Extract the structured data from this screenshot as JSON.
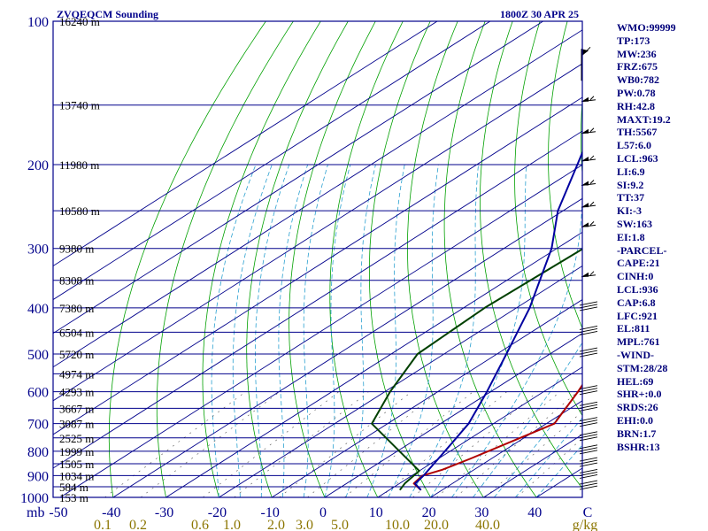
{
  "chart_data": {
    "type": "skew-t-log-p",
    "title": "ZVQEQCM Sounding",
    "valid_time": "1800Z 30 APR 25",
    "pressure_axis": {
      "unit": "mb",
      "ylim": [
        1000,
        100
      ],
      "tick_labels": [
        "100",
        "200",
        "300",
        "400",
        "500",
        "600",
        "700",
        "800",
        "900",
        "1000"
      ]
    },
    "temperature_axis": {
      "unit": "C",
      "xlim": [
        -50,
        50
      ],
      "tick_labels": [
        "-50",
        "-40",
        "-30",
        "-20",
        "-10",
        "0",
        "10",
        "20",
        "30",
        "40",
        "C"
      ]
    },
    "mixing_ratio_axis": {
      "unit": "g/kg",
      "tick_labels": [
        "0.1",
        "0.2",
        "0.6",
        "1.0",
        "2.0",
        "3.0",
        "5.0",
        "10.0",
        "20.0",
        "40.0",
        "g/kg"
      ]
    },
    "height_labels": [
      {
        "p": 100,
        "label": "16240 m"
      },
      {
        "p": 150,
        "label": "13740 m"
      },
      {
        "p": 200,
        "label": "11980 m"
      },
      {
        "p": 250,
        "label": "10580 m"
      },
      {
        "p": 300,
        "label": "9380 m"
      },
      {
        "p": 350,
        "label": "8308 m"
      },
      {
        "p": 400,
        "label": "7380 m"
      },
      {
        "p": 450,
        "label": "6504 m"
      },
      {
        "p": 500,
        "label": "5720 m"
      },
      {
        "p": 550,
        "label": "4974 m"
      },
      {
        "p": 600,
        "label": "4293 m"
      },
      {
        "p": 650,
        "label": "3667 m"
      },
      {
        "p": 700,
        "label": "3087 m"
      },
      {
        "p": 750,
        "label": "2525 m"
      },
      {
        "p": 800,
        "label": "1999 m"
      },
      {
        "p": 850,
        "label": "1505 m"
      },
      {
        "p": 900,
        "label": "1034 m"
      },
      {
        "p": 950,
        "label": "584 m"
      },
      {
        "p": 1000,
        "label": "153 m"
      }
    ],
    "series": [
      {
        "name": "temperature",
        "color": "#b00000",
        "points": [
          [
            965,
            16
          ],
          [
            935,
            12.7
          ],
          [
            900,
            12
          ],
          [
            875,
            14
          ],
          [
            830,
            16
          ],
          [
            700,
            21.5
          ],
          [
            600,
            16.5
          ],
          [
            500,
            10
          ],
          [
            400,
            4
          ],
          [
            300,
            -6.5
          ],
          [
            250,
            -11
          ],
          [
            200,
            -8
          ],
          [
            150,
            -9
          ],
          [
            130,
            -3
          ],
          [
            100,
            9
          ]
        ]
      },
      {
        "name": "dewpoint",
        "color": "#004000",
        "points": [
          [
            965,
            12
          ],
          [
            935,
            11
          ],
          [
            880,
            10
          ],
          [
            700,
            -13
          ],
          [
            600,
            -19
          ],
          [
            500,
            -25
          ],
          [
            400,
            -26
          ],
          [
            300,
            -25
          ],
          [
            250,
            -32
          ],
          [
            200,
            -36
          ],
          [
            170,
            -29
          ],
          [
            150,
            -30
          ],
          [
            120,
            -23
          ],
          [
            100,
            -10
          ]
        ]
      },
      {
        "name": "parcel",
        "color": "#0000a0",
        "points": [
          [
            965,
            16
          ],
          [
            936,
            13
          ],
          [
            900,
            12.2
          ],
          [
            800,
            9
          ],
          [
            700,
            5.3
          ],
          [
            600,
            -0.7
          ],
          [
            500,
            -8.2
          ],
          [
            400,
            -17.5
          ],
          [
            300,
            -31
          ],
          [
            250,
            -41
          ],
          [
            200,
            -51
          ],
          [
            150,
            -64
          ],
          [
            110,
            -75
          ]
        ]
      }
    ],
    "wind_barbs": [
      {
        "p": 130,
        "kind": "flag"
      },
      {
        "p": 150,
        "kind": "barb"
      },
      {
        "p": 175,
        "kind": "barb"
      },
      {
        "p": 200,
        "kind": "barb"
      },
      {
        "p": 225,
        "kind": "barb"
      },
      {
        "p": 250,
        "kind": "barb"
      },
      {
        "p": 275,
        "kind": "barb"
      },
      {
        "p": 350,
        "kind": "barb"
      },
      {
        "p": 400,
        "kind": "light"
      },
      {
        "p": 450,
        "kind": "light"
      },
      {
        "p": 500,
        "kind": "light"
      },
      {
        "p": 600,
        "kind": "light"
      },
      {
        "p": 650,
        "kind": "light"
      },
      {
        "p": 700,
        "kind": "light"
      },
      {
        "p": 750,
        "kind": "light"
      },
      {
        "p": 800,
        "kind": "light"
      },
      {
        "p": 850,
        "kind": "light"
      },
      {
        "p": 900,
        "kind": "light"
      },
      {
        "p": 950,
        "kind": "light"
      }
    ],
    "grid": true,
    "colors": {
      "background": "#ffffff",
      "frame": "#00008b",
      "isobar": "#00008b",
      "isotherm": "#00008b",
      "dry_adiabat": "#00a000",
      "moist_adiabat": "#2aa0d0",
      "mixing_ratio": "#555555",
      "bottom_labels": "#8b7500"
    }
  },
  "indices": [
    "WMO:99999",
    "TP:173",
    "MW:236",
    "FRZ:675",
    "WB0:782",
    "PW:0.78",
    "RH:42.8",
    "MAXT:19.2",
    "TH:5567",
    "L57:6.0",
    "LCL:963",
    "LI:6.9",
    "SI:9.2",
    "TT:37",
    "KI:-3",
    "SW:163",
    "EI:1.8",
    "-PARCEL-",
    "CAPE:21",
    "CINH:0",
    "LCL:936",
    "CAP:6.8",
    "LFC:921",
    "EL:811",
    "MPL:761",
    "-WIND-",
    "STM:28/28",
    "HEL:69",
    "SHR+:0.0",
    "SRDS:26",
    "EHI:0.0",
    "BRN:1.7",
    "BSHR:13"
  ]
}
